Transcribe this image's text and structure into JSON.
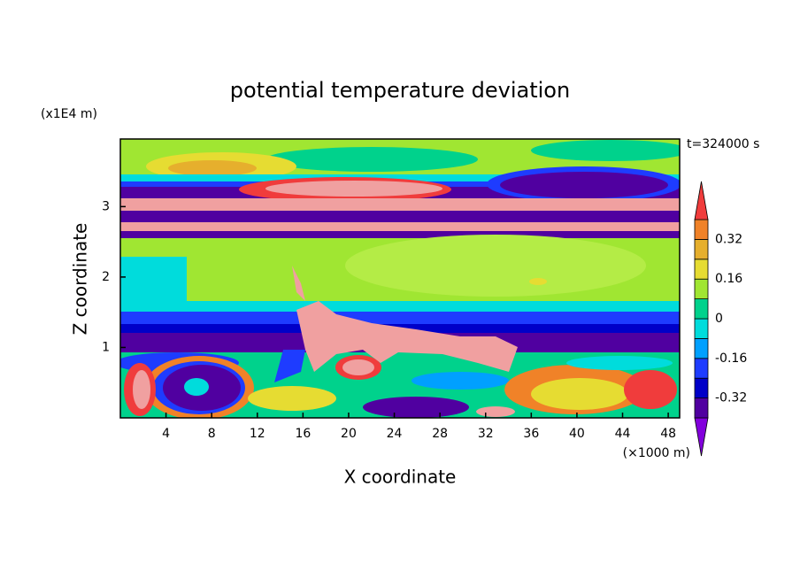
{
  "chart_data": {
    "type": "contour",
    "title": "potential temperature deviation",
    "xlabel": "X coordinate",
    "ylabel": "Z coordinate",
    "x_unit": "(×1000 m)",
    "y_unit": "(x1E4 m)",
    "time_label": "t=324000 s",
    "xlim": [
      0,
      49
    ],
    "ylim": [
      0,
      3.96
    ],
    "xticks": [
      4,
      8,
      12,
      16,
      20,
      24,
      28,
      32,
      36,
      40,
      44,
      48
    ],
    "yticks": [
      1,
      2,
      3
    ],
    "colorbar": {
      "levels": [
        -0.4,
        -0.32,
        -0.24,
        -0.16,
        -0.08,
        0,
        0.08,
        0.16,
        0.24,
        0.32,
        0.4
      ],
      "ticks": [
        -0.32,
        -0.16,
        0,
        0.16,
        0.32
      ],
      "colors": [
        "#8200dc",
        "#5000a0",
        "#0000c8",
        "#1e3cff",
        "#00a0ff",
        "#00dcdc",
        "#00d28c",
        "#a0e632",
        "#e6dc32",
        "#e6af2d",
        "#f08228",
        "#f03c3c",
        "#f0a0a0"
      ]
    }
  }
}
